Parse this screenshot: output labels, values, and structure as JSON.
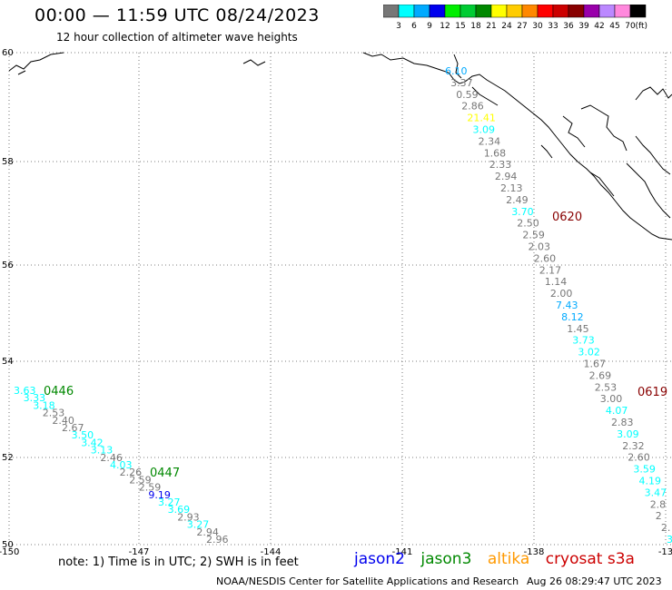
{
  "header": {
    "title": "00:00 — 11:59 UTC 08/24/2023",
    "subtitle": "12 hour collection of altimeter wave heights"
  },
  "color_scale": {
    "unit": "(ft)",
    "bins": [
      {
        "label": "3",
        "color": "#777777"
      },
      {
        "label": "6",
        "color": "#00ffff"
      },
      {
        "label": "9",
        "color": "#00aaff"
      },
      {
        "label": "12",
        "color": "#0000ee"
      },
      {
        "label": "15",
        "color": "#00ee00"
      },
      {
        "label": "18",
        "color": "#00cc33"
      },
      {
        "label": "21",
        "color": "#008800"
      },
      {
        "label": "24",
        "color": "#ffff00"
      },
      {
        "label": "27",
        "color": "#ffcc00"
      },
      {
        "label": "30",
        "color": "#ff8800"
      },
      {
        "label": "33",
        "color": "#ff0000"
      },
      {
        "label": "36",
        "color": "#cc0000"
      },
      {
        "label": "39",
        "color": "#880000"
      },
      {
        "label": "42",
        "color": "#9900aa"
      },
      {
        "label": "45",
        "color": "#bb88ff"
      },
      {
        "label": "70",
        "color": "#ff88dd"
      },
      {
        "label": "",
        "color": "#000000"
      }
    ]
  },
  "map": {
    "lon_ticks": [
      "-150",
      "-147",
      "-144",
      "-141",
      "-138",
      "-13"
    ],
    "lat_ticks": [
      "60",
      "58",
      "56",
      "54",
      "52",
      "50"
    ]
  },
  "track_labels": [
    {
      "text": "0446",
      "color": "#008800"
    },
    {
      "text": "0447",
      "color": "#008800"
    },
    {
      "text": "0620",
      "color": "#880000"
    },
    {
      "text": "0619",
      "color": "#880000"
    }
  ],
  "wave_heights": {
    "track_west": [
      {
        "v": "3.63",
        "c": "#00ffff"
      },
      {
        "v": "3.33",
        "c": "#00ffff"
      },
      {
        "v": "3.18",
        "c": "#00ffff"
      },
      {
        "v": "2.53",
        "c": "#777777"
      },
      {
        "v": "2.40",
        "c": "#777777"
      },
      {
        "v": "2.67",
        "c": "#777777"
      },
      {
        "v": "3.50",
        "c": "#00ffff"
      },
      {
        "v": "3.42",
        "c": "#00ffff"
      },
      {
        "v": "3.13",
        "c": "#00ffff"
      },
      {
        "v": "2.46",
        "c": "#777777"
      },
      {
        "v": "4.03",
        "c": "#00ffff"
      },
      {
        "v": "2.26",
        "c": "#777777"
      },
      {
        "v": "2.59",
        "c": "#777777"
      },
      {
        "v": "2.59",
        "c": "#777777"
      },
      {
        "v": "9.19",
        "c": "#0000ee"
      },
      {
        "v": "3.27",
        "c": "#00ffff"
      },
      {
        "v": "3.69",
        "c": "#00ffff"
      },
      {
        "v": "2.93",
        "c": "#777777"
      },
      {
        "v": "3.27",
        "c": "#00ffff"
      },
      {
        "v": "2.94",
        "c": "#777777"
      },
      {
        "v": "2.96",
        "c": "#777777"
      }
    ],
    "track_north": [
      {
        "v": "6.10",
        "c": "#00aaff"
      },
      {
        "v": "3.37",
        "c": "#777777"
      },
      {
        "v": "0.59",
        "c": "#777777"
      },
      {
        "v": "2.86",
        "c": "#777777"
      },
      {
        "v": "21.41",
        "c": "#ffff00"
      },
      {
        "v": "3.09",
        "c": "#00ffff"
      },
      {
        "v": "2.34",
        "c": "#777777"
      },
      {
        "v": "1.68",
        "c": "#777777"
      },
      {
        "v": "2.33",
        "c": "#777777"
      },
      {
        "v": "2.94",
        "c": "#777777"
      },
      {
        "v": "2.13",
        "c": "#777777"
      },
      {
        "v": "2.49",
        "c": "#777777"
      },
      {
        "v": "3.70",
        "c": "#00ffff"
      },
      {
        "v": "2.50",
        "c": "#777777"
      },
      {
        "v": "2.59",
        "c": "#777777"
      },
      {
        "v": "2.03",
        "c": "#777777"
      },
      {
        "v": "2.60",
        "c": "#777777"
      },
      {
        "v": "2.17",
        "c": "#777777"
      },
      {
        "v": "1.14",
        "c": "#777777"
      },
      {
        "v": "2.00",
        "c": "#777777"
      },
      {
        "v": "7.43",
        "c": "#00aaff"
      },
      {
        "v": "8.12",
        "c": "#00aaff"
      },
      {
        "v": "1.45",
        "c": "#777777"
      },
      {
        "v": "3.73",
        "c": "#00ffff"
      },
      {
        "v": "3.02",
        "c": "#00ffff"
      },
      {
        "v": "1.67",
        "c": "#777777"
      },
      {
        "v": "2.69",
        "c": "#777777"
      },
      {
        "v": "2.53",
        "c": "#777777"
      },
      {
        "v": "3.00",
        "c": "#777777"
      },
      {
        "v": "4.07",
        "c": "#00ffff"
      },
      {
        "v": "2.83",
        "c": "#777777"
      },
      {
        "v": "3.09",
        "c": "#00ffff"
      },
      {
        "v": "2.32",
        "c": "#777777"
      },
      {
        "v": "2.60",
        "c": "#777777"
      },
      {
        "v": "3.59",
        "c": "#00ffff"
      },
      {
        "v": "4.19",
        "c": "#00ffff"
      },
      {
        "v": "3.47",
        "c": "#00ffff"
      },
      {
        "v": "2.8",
        "c": "#777777"
      },
      {
        "v": "2",
        "c": "#777777"
      },
      {
        "v": "2.",
        "c": "#777777"
      },
      {
        "v": "3",
        "c": "#00ffff"
      }
    ]
  },
  "footer": {
    "note": "note: 1) Time is in UTC; 2) SWH is in feet",
    "satellites": [
      {
        "name": "jason2",
        "color": "#0000ee"
      },
      {
        "name": "jason3",
        "color": "#008800"
      },
      {
        "name": "altika",
        "color": "#ff9900"
      },
      {
        "name": "cryosat s3a",
        "color": "#cc0000"
      }
    ],
    "credit": "NOAA/NESDIS Center for Satellite Applications and Research",
    "timestamp": "Aug 26 08:29:47 UTC 2023"
  }
}
